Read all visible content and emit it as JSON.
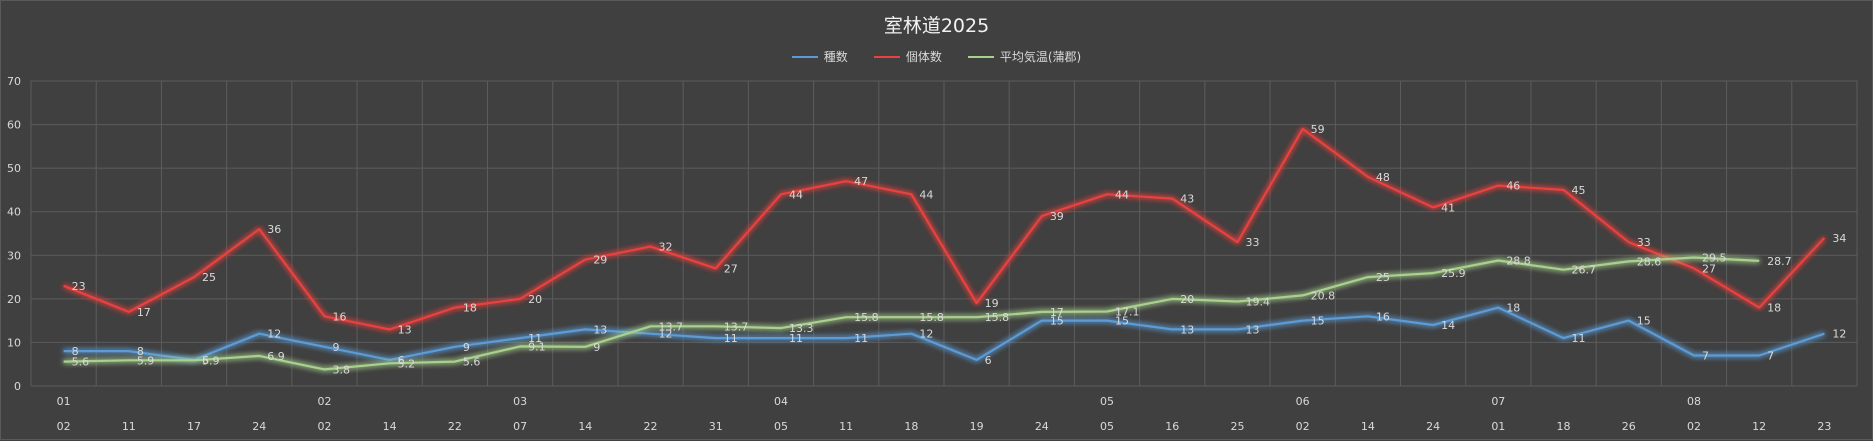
{
  "chart_data": {
    "type": "line",
    "title": "室林道2025",
    "ylim": [
      0,
      70
    ],
    "yticks": [
      "0",
      "10",
      "20",
      "30",
      "40",
      "50",
      "60",
      "70"
    ],
    "grid": true,
    "legend_position": "top",
    "month_labels": [
      "01",
      "",
      "",
      "",
      "02",
      "",
      "",
      "03",
      "",
      "",
      "",
      "04",
      "",
      "",
      "",
      "",
      "05",
      "",
      "",
      "06",
      "",
      "",
      "07",
      "",
      "",
      "08",
      "",
      ""
    ],
    "categories": [
      "02",
      "11",
      "17",
      "24",
      "02",
      "14",
      "22",
      "07",
      "14",
      "22",
      "31",
      "05",
      "11",
      "18",
      "19",
      "24",
      "05",
      "16",
      "25",
      "02",
      "14",
      "24",
      "01",
      "18",
      "26",
      "02",
      "12",
      "23"
    ],
    "series": [
      {
        "name": "種数",
        "color": "#5b9bd5",
        "values": [
          8,
          8,
          6,
          12,
          9,
          6,
          9,
          11,
          13,
          12,
          11,
          11,
          11,
          12,
          6,
          15,
          15,
          13,
          13,
          15,
          16,
          14,
          18,
          11,
          15,
          7,
          7,
          12
        ]
      },
      {
        "name": "個体数",
        "color": "#e8423f",
        "values": [
          23,
          17,
          25,
          36,
          16,
          13,
          18,
          20,
          29,
          32,
          27,
          44,
          47,
          44,
          19,
          39,
          44,
          43,
          33,
          59,
          48,
          41,
          46,
          45,
          33,
          27,
          18,
          34
        ]
      },
      {
        "name": "平均気温(蒲郡)",
        "color": "#a9d18e",
        "values": [
          5.6,
          5.9,
          5.9,
          6.9,
          3.8,
          5.2,
          5.6,
          9.1,
          9,
          13.7,
          13.7,
          13.3,
          15.8,
          15.8,
          15.8,
          17,
          17.1,
          20,
          19.4,
          20.8,
          25,
          25.9,
          28.8,
          26.7,
          28.6,
          29.5,
          28.7,
          null
        ]
      }
    ]
  }
}
